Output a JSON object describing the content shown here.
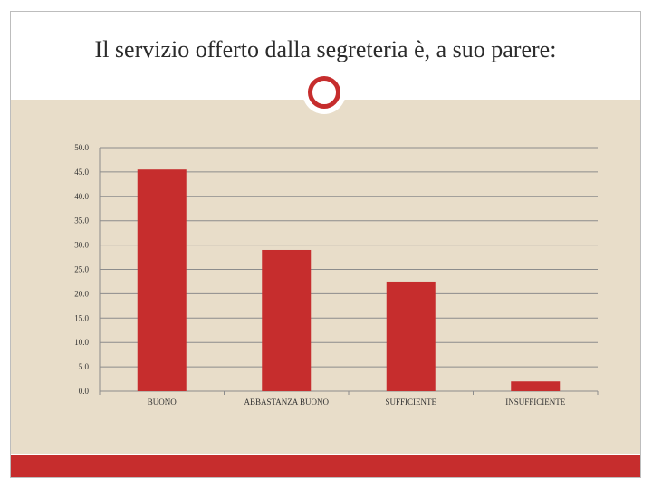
{
  "title": "Il servizio offerto dalla segreteria è, a suo parere:",
  "colors": {
    "bar": "#c62d2d",
    "background": "#e8ddc9",
    "accent": "#c62d2d"
  },
  "chart_data": {
    "type": "bar",
    "title": "",
    "xlabel": "",
    "ylabel": "",
    "categories": [
      "BUONO",
      "ABBASTANZA BUONO",
      "SUFFICIENTE",
      "INSUFFICIENTE"
    ],
    "values": [
      45.5,
      29.0,
      22.5,
      2.0
    ],
    "ylim": [
      0,
      50
    ],
    "yticks": [
      "0.0",
      "5.0",
      "10.0",
      "15.0",
      "20.0",
      "25.0",
      "30.0",
      "35.0",
      "40.0",
      "45.0",
      "50.0"
    ],
    "grid": true,
    "legend": "none"
  }
}
